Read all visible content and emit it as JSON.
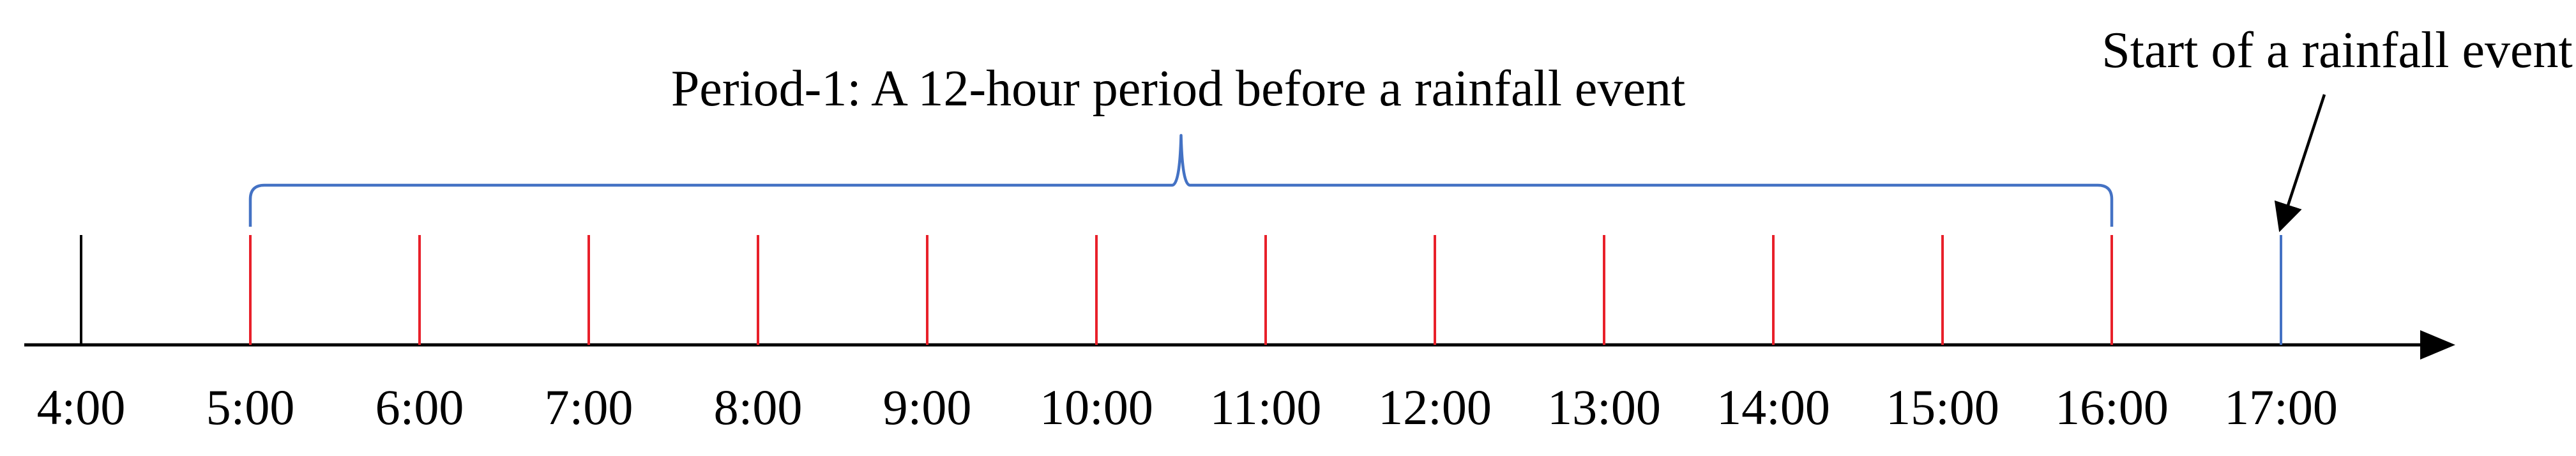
{
  "colors": {
    "axis": "#000000",
    "first_tick": "#000000",
    "period_tick": "#e8202a",
    "event_tick": "#4472c4",
    "brace": "#4472c4",
    "pointer": "#000000"
  },
  "timeline": {
    "times": [
      "4:00",
      "5:00",
      "6:00",
      "7:00",
      "8:00",
      "9:00",
      "10:00",
      "11:00",
      "12:00",
      "13:00",
      "14:00",
      "15:00",
      "16:00",
      "17:00"
    ],
    "period_start": "5:00",
    "period_end": "16:00",
    "event_time": "17:00"
  },
  "annotations": {
    "period_label": "Period-1: A 12-hour period before a rainfall event",
    "event_label": "Start of a rainfall event"
  }
}
